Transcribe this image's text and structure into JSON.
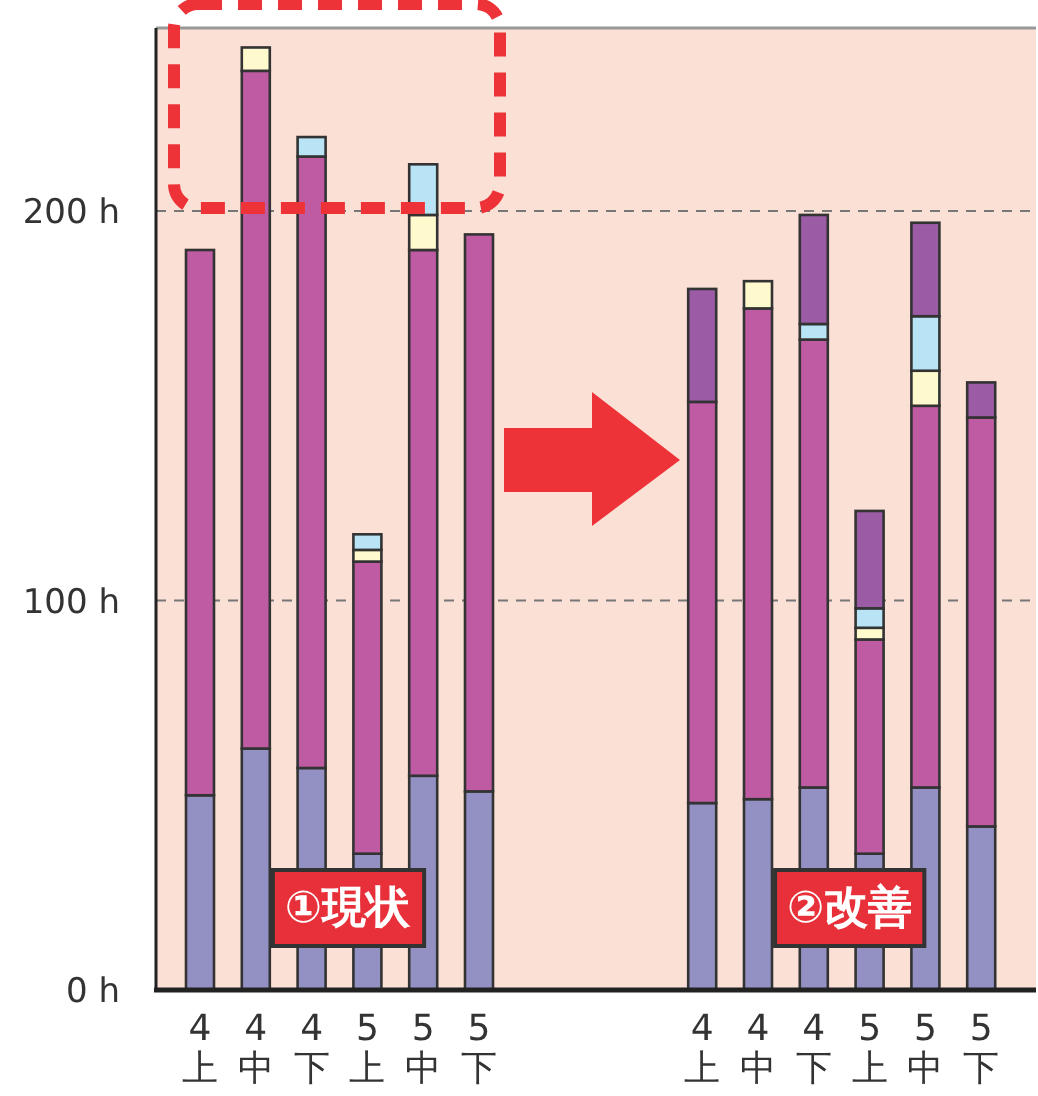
{
  "chart_data": {
    "type": "bar",
    "stacked": true,
    "categories": [
      "4上",
      "4中",
      "4下",
      "5上",
      "5中",
      "5下",
      null,
      null,
      null,
      "4上",
      "4中",
      "4下",
      "5上",
      "5中",
      "5下"
    ],
    "series": [
      {
        "color": "#9391c4",
        "values": [
          50,
          62,
          57,
          35,
          55,
          51,
          null,
          null,
          null,
          48,
          49,
          52,
          35,
          52,
          42
        ]
      },
      {
        "color": "#bf5ba3",
        "values": [
          140,
          174,
          157,
          75,
          135,
          143,
          null,
          null,
          null,
          103,
          126,
          115,
          55,
          98,
          105
        ]
      },
      {
        "color": "#fffacd",
        "values": [
          null,
          6,
          null,
          3,
          9,
          null,
          null,
          null,
          null,
          null,
          7,
          null,
          3,
          9,
          null
        ]
      },
      {
        "color": "#b8e4f5",
        "values": [
          null,
          null,
          5,
          4,
          13,
          null,
          null,
          null,
          null,
          null,
          null,
          4,
          5,
          14,
          null
        ]
      },
      {
        "color": "#9b5ba5",
        "values": [
          null,
          null,
          null,
          null,
          null,
          null,
          null,
          null,
          null,
          29,
          null,
          28,
          25,
          24,
          9
        ]
      }
    ],
    "ylim": [
      0,
      247
    ],
    "yticks": [
      {
        "value": 0,
        "label": "0 h"
      },
      {
        "value": 100,
        "label": "100 h"
      },
      {
        "value": 200,
        "label": "200 h"
      }
    ],
    "grid": "y",
    "annotations": [
      "①現状",
      "②改善"
    ]
  }
}
